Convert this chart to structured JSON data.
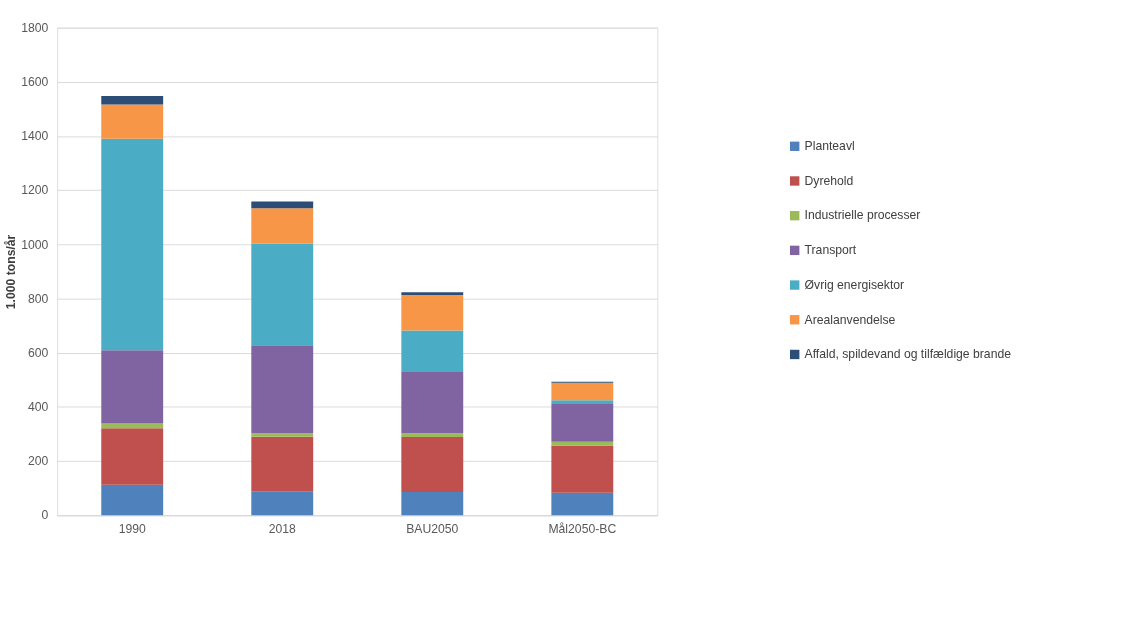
{
  "chart_data": {
    "type": "bar",
    "stacked": true,
    "ylabel": "1.000 tons/år",
    "categories": [
      "1990",
      "2018",
      "BAU2050",
      "Mål2050-BC"
    ],
    "series": [
      {
        "name": "Planteavl",
        "color": "#4f81bd",
        "values": [
          113,
          87,
          86,
          83
        ]
      },
      {
        "name": "Dyrehold",
        "color": "#c0504d",
        "values": [
          208,
          203,
          203,
          175
        ]
      },
      {
        "name": "Industrielle processer",
        "color": "#9bbb59",
        "values": [
          18,
          13,
          14,
          13
        ]
      },
      {
        "name": "Transport",
        "color": "#8064a2",
        "values": [
          270,
          325,
          226,
          140
        ]
      },
      {
        "name": "Øvrig energisektor",
        "color": "#4bacc6",
        "values": [
          781,
          374,
          153,
          14
        ]
      },
      {
        "name": "Arealanvendelse",
        "color": "#f79646",
        "values": [
          126,
          131,
          131,
          64
        ]
      },
      {
        "name": "Affald, spildevand og tilfældige brande",
        "color": "#2c4d75",
        "values": [
          32,
          25,
          10,
          4
        ]
      }
    ],
    "ylim": [
      0,
      1800
    ],
    "yticks": [
      0,
      200,
      400,
      600,
      800,
      1000,
      1200,
      1400,
      1600,
      1800
    ],
    "grid": "y",
    "legend": "right"
  }
}
